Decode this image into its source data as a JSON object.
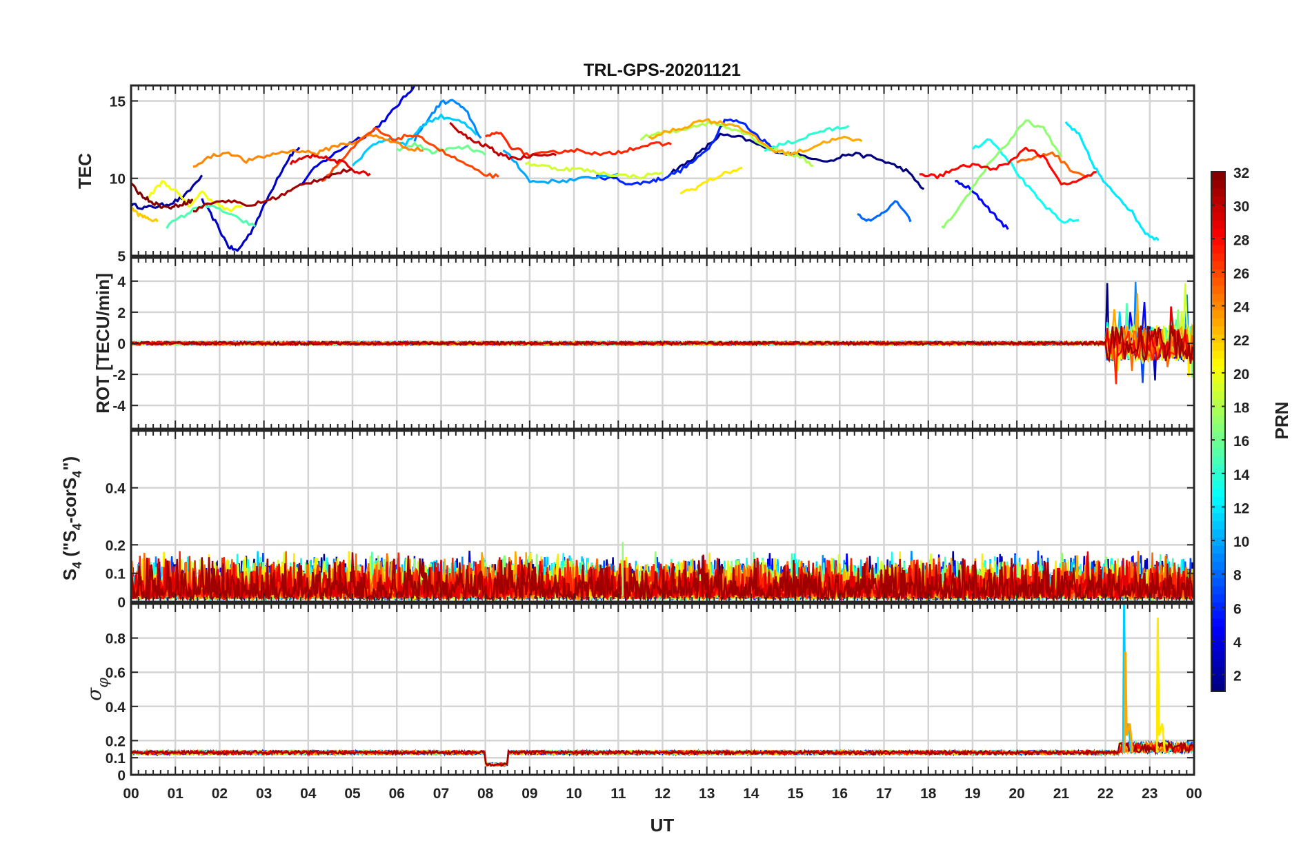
{
  "chart_data": {
    "type": "line",
    "title": "TRL-GPS-20201121",
    "xlabel": "UT",
    "x_ticks": [
      "00",
      "01",
      "02",
      "03",
      "04",
      "05",
      "06",
      "07",
      "08",
      "09",
      "10",
      "11",
      "12",
      "13",
      "14",
      "15",
      "16",
      "17",
      "18",
      "19",
      "20",
      "21",
      "22",
      "23",
      "00"
    ],
    "xlim": [
      0,
      24
    ],
    "grid": true,
    "colorbar": {
      "label": "PRN",
      "range": [
        1,
        32
      ],
      "ticks": [
        "2",
        "4",
        "6",
        "8",
        "10",
        "12",
        "14",
        "16",
        "18",
        "20",
        "22",
        "24",
        "26",
        "28",
        "30",
        "32"
      ],
      "colormap": "jet"
    },
    "panels": [
      {
        "name": "tec",
        "ylabel": "TEC",
        "ylim": [
          5,
          16
        ],
        "y_ticks": [
          "5",
          "10",
          "15"
        ],
        "series": [
          {
            "prn": 2,
            "x": [
              0.0,
              0.3,
              0.6,
              0.9,
              1.2,
              1.6
            ],
            "y": [
              8.3,
              8.1,
              8.2,
              8.4,
              8.8,
              10.2
            ]
          },
          {
            "prn": 3,
            "x": [
              1.6,
              1.9,
              2.2,
              2.4,
              2.7,
              3.0,
              3.3,
              3.6,
              3.8
            ],
            "y": [
              8.6,
              7.2,
              5.6,
              5.3,
              6.5,
              8.2,
              10.0,
              11.5,
              12.0
            ]
          },
          {
            "prn": 4,
            "x": [
              3.8,
              4.2,
              4.6,
              5.0,
              5.4,
              5.8,
              6.1,
              6.4
            ],
            "y": [
              9.5,
              10.8,
              11.6,
              12.4,
              12.9,
              14.0,
              15.0,
              16.0
            ]
          },
          {
            "prn": 1,
            "x": [
              12.2,
              12.5,
              12.9,
              13.3,
              13.8,
              14.3,
              14.8,
              15.3,
              15.8,
              16.2,
              16.7,
              17.1,
              17.5,
              17.9
            ],
            "y": [
              10.4,
              10.9,
              11.8,
              12.8,
              12.6,
              12.0,
              11.6,
              11.4,
              11.1,
              11.6,
              11.4,
              11.0,
              10.5,
              9.3
            ]
          },
          {
            "prn": 5,
            "x": [
              18.6,
              18.9,
              19.2,
              19.5,
              19.8
            ],
            "y": [
              9.8,
              9.4,
              8.6,
              7.6,
              6.7
            ]
          },
          {
            "prn": 6,
            "x": [
              10.5,
              10.9,
              11.3,
              11.7,
              12.0,
              12.4,
              12.8,
              13.1,
              13.4,
              13.8,
              14.2,
              14.5
            ],
            "y": [
              10.1,
              10.0,
              9.6,
              9.8,
              10.0,
              10.5,
              11.3,
              12.2,
              13.8,
              13.6,
              12.6,
              12.0
            ]
          },
          {
            "prn": 8,
            "x": [
              16.4,
              16.7,
              17.0,
              17.3,
              17.6
            ],
            "y": [
              7.7,
              7.2,
              7.9,
              8.5,
              7.2
            ]
          },
          {
            "prn": 9,
            "x": [
              6.4,
              6.7,
              7.0,
              7.3,
              7.6,
              7.9
            ],
            "y": [
              12.5,
              13.8,
              14.9,
              15.0,
              14.2,
              12.6
            ]
          },
          {
            "prn": 10,
            "x": [
              8.4,
              8.7,
              9.0,
              9.5,
              10.0,
              10.5,
              11.0
            ],
            "y": [
              11.8,
              11.0,
              9.8,
              9.8,
              9.9,
              10.1,
              10.3
            ]
          },
          {
            "prn": 11,
            "x": [
              5.0,
              5.4,
              5.8,
              6.2,
              6.6,
              7.0,
              7.4,
              7.8
            ],
            "y": [
              10.7,
              12.1,
              12.6,
              12.2,
              13.5,
              14.0,
              13.8,
              12.8
            ]
          },
          {
            "prn": 12,
            "x": [
              21.1,
              21.4,
              21.7,
              22.0,
              22.3,
              22.6,
              22.9,
              23.2
            ],
            "y": [
              13.6,
              12.8,
              11.0,
              9.6,
              8.8,
              7.8,
              6.5,
              6.0
            ]
          },
          {
            "prn": 13,
            "x": [
              19.0,
              19.4,
              19.8,
              20.2,
              20.6,
              21.0,
              21.4
            ],
            "y": [
              11.9,
              12.6,
              11.2,
              9.6,
              8.3,
              7.2,
              7.3
            ]
          },
          {
            "prn": 14,
            "x": [
              14.3,
              14.7,
              15.1,
              15.5,
              15.9,
              16.2
            ],
            "y": [
              11.8,
              12.2,
              12.5,
              13.0,
              13.2,
              13.4
            ]
          },
          {
            "prn": 15,
            "x": [
              0.8,
              1.2,
              1.6,
              2.0,
              2.4,
              2.8
            ],
            "y": [
              6.9,
              7.6,
              8.3,
              8.0,
              7.4,
              6.9
            ]
          },
          {
            "prn": 16,
            "x": [
              6.0,
              6.4,
              6.8,
              7.2,
              7.6,
              8.0
            ],
            "y": [
              11.8,
              12.2,
              11.7,
              11.9,
              12.0,
              11.5
            ]
          },
          {
            "prn": 17,
            "x": [
              18.3,
              18.6,
              19.0,
              19.4,
              19.8,
              20.2,
              20.6,
              21.0
            ],
            "y": [
              6.8,
              7.6,
              9.4,
              11.1,
              12.3,
              13.7,
              13.2,
              11.4
            ]
          },
          {
            "prn": 18,
            "x": [
              11.5,
              11.9,
              12.3,
              12.7,
              13.1,
              13.5,
              13.9,
              14.3,
              14.7,
              15.1,
              15.4
            ],
            "y": [
              12.6,
              12.9,
              13.0,
              13.4,
              13.6,
              13.3,
              12.9,
              12.1,
              11.7,
              11.4,
              10.8
            ]
          },
          {
            "prn": 19,
            "x": [
              8.9,
              9.3,
              9.7,
              10.1,
              10.5,
              11.0,
              11.5,
              12.0
            ],
            "y": [
              11.0,
              10.8,
              10.6,
              10.6,
              10.4,
              10.2,
              10.1,
              10.4
            ]
          },
          {
            "prn": 20,
            "x": [
              0.4,
              0.7,
              1.0,
              1.3,
              1.6,
              1.9,
              2.2,
              2.5
            ],
            "y": [
              8.8,
              9.8,
              9.2,
              8.2,
              9.1,
              8.4,
              7.9,
              8.2
            ]
          },
          {
            "prn": 21,
            "x": [
              12.4,
              12.7,
              13.0,
              13.4,
              13.8
            ],
            "y": [
              9.1,
              9.3,
              9.8,
              10.3,
              10.7
            ]
          },
          {
            "prn": 22,
            "x": [
              0.0,
              0.2,
              0.4,
              0.6
            ],
            "y": [
              8.1,
              7.6,
              7.4,
              7.2
            ]
          },
          {
            "prn": 23,
            "x": [
              11.7,
              12.1,
              12.5,
              12.9,
              13.3,
              13.7,
              14.1,
              14.5,
              14.9,
              15.3,
              15.7,
              16.1,
              16.5
            ],
            "y": [
              12.6,
              13.0,
              13.3,
              13.8,
              13.6,
              13.4,
              12.6,
              11.8,
              11.6,
              11.9,
              12.4,
              12.6,
              12.4
            ]
          },
          {
            "prn": 24,
            "x": [
              1.4,
              1.8,
              2.2,
              2.6,
              3.0,
              3.4,
              3.8,
              4.2,
              4.6,
              5.0,
              5.4,
              5.8,
              6.2,
              6.6
            ],
            "y": [
              10.8,
              11.4,
              11.7,
              11.1,
              11.4,
              11.7,
              11.8,
              11.6,
              12.1,
              12.3,
              12.8,
              12.5,
              12.0,
              11.8
            ]
          },
          {
            "prn": 25,
            "x": [
              20.0,
              20.4,
              20.8,
              21.2,
              21.6
            ],
            "y": [
              11.1,
              11.3,
              11.7,
              10.6,
              10.1
            ]
          },
          {
            "prn": 26,
            "x": [
              4.3,
              4.7,
              5.1,
              5.5,
              5.9,
              6.3,
              6.7,
              7.1,
              7.5,
              7.9,
              8.3
            ],
            "y": [
              9.8,
              11.0,
              12.2,
              13.2,
              12.5,
              12.8,
              12.4,
              11.6,
              11.0,
              10.3,
              10.1
            ]
          },
          {
            "prn": 27,
            "x": [
              8.0,
              8.3,
              8.6,
              9.0,
              9.4,
              9.8,
              10.2,
              10.6,
              11.0,
              11.4,
              11.8,
              12.2
            ],
            "y": [
              12.6,
              13.0,
              12.0,
              11.5,
              11.6,
              11.8,
              11.8,
              11.5,
              11.7,
              12.0,
              12.2,
              12.2
            ]
          },
          {
            "prn": 28,
            "x": [
              17.8,
              18.2,
              18.6,
              19.0,
              19.4,
              19.8,
              20.2,
              20.6,
              21.0,
              21.4,
              21.8
            ],
            "y": [
              10.3,
              10.1,
              10.6,
              10.9,
              10.6,
              10.9,
              12.0,
              11.4,
              9.6,
              9.8,
              10.4
            ]
          },
          {
            "prn": 29,
            "x": [
              3.6,
              3.9,
              4.2,
              4.5,
              4.8,
              5.1,
              5.4
            ],
            "y": [
              11.0,
              11.3,
              11.5,
              11.2,
              11.0,
              10.4,
              10.3
            ]
          },
          {
            "prn": 30,
            "x": [
              7.2,
              7.5,
              7.8,
              8.1,
              8.4,
              8.8,
              9.2,
              9.6
            ],
            "y": [
              13.5,
              12.8,
              12.3,
              12.0,
              11.4,
              11.3,
              11.6,
              11.5
            ]
          },
          {
            "prn": 31,
            "x": [
              1.4,
              1.8,
              2.2,
              2.6,
              3.0,
              3.4,
              3.8,
              4.2,
              4.6,
              5.0
            ],
            "y": [
              7.9,
              8.4,
              8.6,
              8.2,
              8.5,
              8.9,
              9.5,
              9.9,
              10.3,
              10.6
            ]
          },
          {
            "prn": 32,
            "x": [
              0.0,
              0.2,
              0.4,
              0.6,
              0.8,
              1.0,
              1.2,
              1.4
            ],
            "y": [
              9.6,
              9.0,
              8.6,
              8.3,
              8.1,
              8.2,
              8.4,
              8.6
            ]
          }
        ]
      },
      {
        "name": "rot",
        "ylabel": "ROT [TECU/min]",
        "ylim": [
          -5.5,
          5.5
        ],
        "y_ticks": [
          "-4",
          "-2",
          "0",
          "2",
          "4"
        ],
        "baseline": 0,
        "noise_amplitude": 0.35,
        "activity": [
          {
            "x_start": 22.0,
            "x_end": 24.0,
            "max_abs": 4.2
          }
        ]
      },
      {
        "name": "s4",
        "ylabel": "S4 (\"S4-corS4\")",
        "ylim": [
          0,
          0.6
        ],
        "y_ticks": [
          "0",
          "0.1",
          "0.2",
          "0.4"
        ],
        "typical_range": [
          0.01,
          0.12
        ],
        "peak_value": 0.21
      },
      {
        "name": "sigma_phi",
        "ylabel": "σφ",
        "ylim": [
          0,
          1
        ],
        "y_ticks": [
          "0",
          "0.1",
          "0.2",
          "0.4",
          "0.6",
          "0.8"
        ],
        "baseline": 0.13,
        "dip": {
          "x_start": 8.0,
          "x_end": 8.5,
          "value": 0.06
        },
        "spikes": [
          {
            "x": 22.42,
            "value": 1.0,
            "prn": 11
          },
          {
            "x": 22.45,
            "value": 0.72,
            "prn": 23
          },
          {
            "x": 23.18,
            "value": 0.92,
            "prn": 21
          }
        ]
      }
    ]
  }
}
